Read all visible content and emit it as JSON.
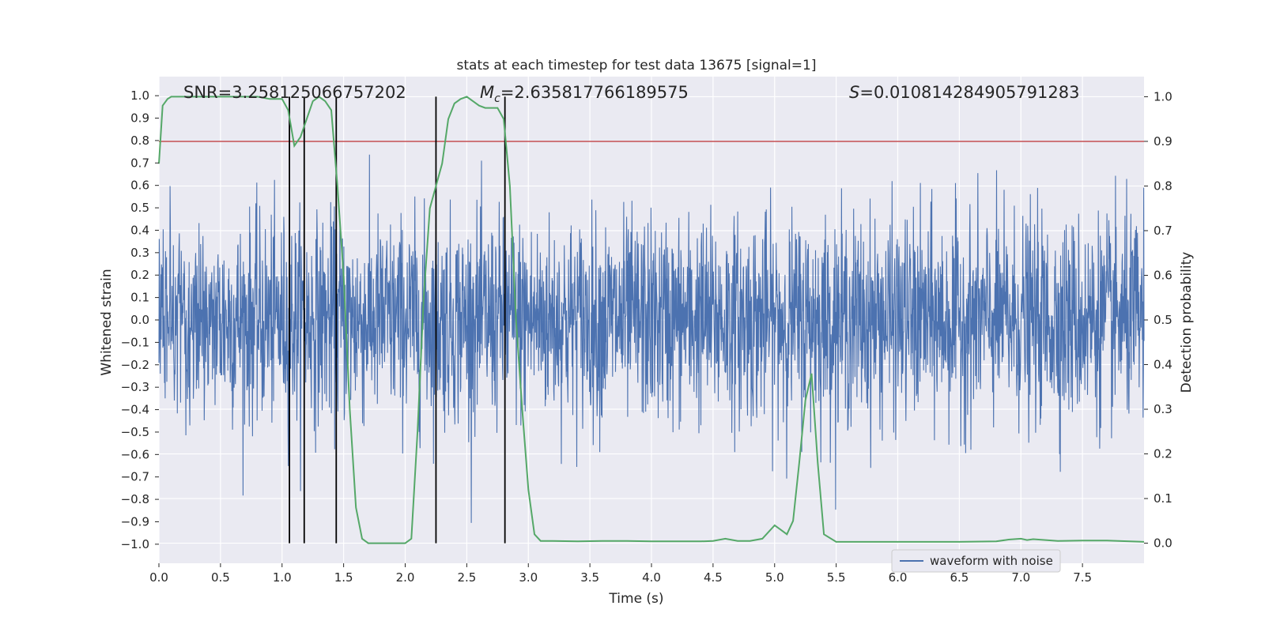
{
  "chart_data": {
    "type": "line",
    "title": "stats at each timestep for test data 13675 [signal=1]",
    "xlabel": "Time (s)",
    "ylabel": "Whitened strain",
    "ylabel_right": "Detection probability",
    "xlim": [
      0,
      8
    ],
    "ylim": [
      -1.0,
      1.0
    ],
    "ylim_right": [
      -0.045,
      1.045
    ],
    "x_ticks": [
      "0.0",
      "0.5",
      "1.0",
      "1.5",
      "2.0",
      "2.5",
      "3.0",
      "3.5",
      "4.0",
      "4.5",
      "5.0",
      "5.5",
      "6.0",
      "6.5",
      "7.0",
      "7.5"
    ],
    "y_ticks": [
      "1.0",
      "0.9",
      "0.8",
      "0.7",
      "0.6",
      "0.5",
      "0.4",
      "0.3",
      "0.2",
      "0.1",
      "0.0",
      "-0.1",
      "-0.2",
      "-0.3",
      "-0.4",
      "-0.5",
      "-0.6",
      "-0.7",
      "-0.8",
      "-0.9",
      "-1.0"
    ],
    "y_ticks_right": [
      "1.0",
      "0.9",
      "0.8",
      "0.7",
      "0.6",
      "0.5",
      "0.4",
      "0.3",
      "0.2",
      "0.1",
      "0.0"
    ],
    "grid": true,
    "legend": {
      "position": "lower-right",
      "entries": [
        "waveform with noise"
      ]
    },
    "annotations": {
      "snr": "SNR=3.258125066757202",
      "mc_symbol": "M",
      "mc_sub": "c",
      "mc_value": "=2.635817766189575",
      "s_symbol": "S",
      "s_value": "=0.010814284905791283"
    },
    "threshold": 0.9,
    "vlines": [
      1.06,
      1.18,
      1.44,
      2.25,
      2.81
    ],
    "series": [
      {
        "name": "waveform with noise",
        "axis": "left",
        "color": "#4c72b0",
        "points": 3000,
        "typical_amplitude": 0.3,
        "peak_amplitude": 0.93
      },
      {
        "axis": "right",
        "color": "#55a868",
        "x": [
          0.0,
          0.03,
          0.07,
          0.1,
          0.2,
          0.4,
          0.6,
          0.8,
          0.9,
          1.0,
          1.05,
          1.1,
          1.15,
          1.2,
          1.25,
          1.3,
          1.35,
          1.4,
          1.45,
          1.5,
          1.55,
          1.6,
          1.65,
          1.7,
          1.75,
          1.8,
          1.85,
          1.9,
          1.95,
          2.0,
          2.05,
          2.1,
          2.15,
          2.2,
          2.25,
          2.3,
          2.35,
          2.4,
          2.45,
          2.5,
          2.55,
          2.6,
          2.65,
          2.7,
          2.75,
          2.8,
          2.85,
          2.9,
          2.95,
          3.0,
          3.05,
          3.1,
          3.2,
          3.4,
          3.6,
          3.8,
          4.0,
          4.2,
          4.4,
          4.5,
          4.6,
          4.7,
          4.8,
          4.9,
          5.0,
          5.05,
          5.1,
          5.15,
          5.2,
          5.25,
          5.3,
          5.35,
          5.4,
          5.5,
          5.7,
          6.0,
          6.5,
          6.8,
          6.9,
          7.0,
          7.05,
          7.1,
          7.3,
          7.5,
          7.7,
          8.0
        ],
        "y": [
          0.85,
          0.98,
          0.995,
          1.0,
          1.0,
          1.0,
          1.0,
          1.0,
          0.995,
          0.995,
          0.97,
          0.89,
          0.91,
          0.95,
          0.99,
          1.0,
          0.99,
          0.97,
          0.8,
          0.6,
          0.3,
          0.08,
          0.01,
          0.0,
          0.0,
          0.0,
          0.0,
          0.0,
          0.0,
          0.0,
          0.01,
          0.25,
          0.55,
          0.75,
          0.8,
          0.85,
          0.95,
          0.985,
          0.995,
          1.0,
          0.99,
          0.98,
          0.975,
          0.975,
          0.975,
          0.95,
          0.8,
          0.5,
          0.3,
          0.12,
          0.02,
          0.005,
          0.005,
          0.004,
          0.005,
          0.005,
          0.004,
          0.004,
          0.004,
          0.005,
          0.01,
          0.005,
          0.005,
          0.01,
          0.04,
          0.03,
          0.02,
          0.05,
          0.18,
          0.32,
          0.38,
          0.18,
          0.02,
          0.003,
          0.003,
          0.003,
          0.003,
          0.004,
          0.008,
          0.01,
          0.007,
          0.009,
          0.005,
          0.006,
          0.006,
          0.003
        ]
      }
    ]
  }
}
